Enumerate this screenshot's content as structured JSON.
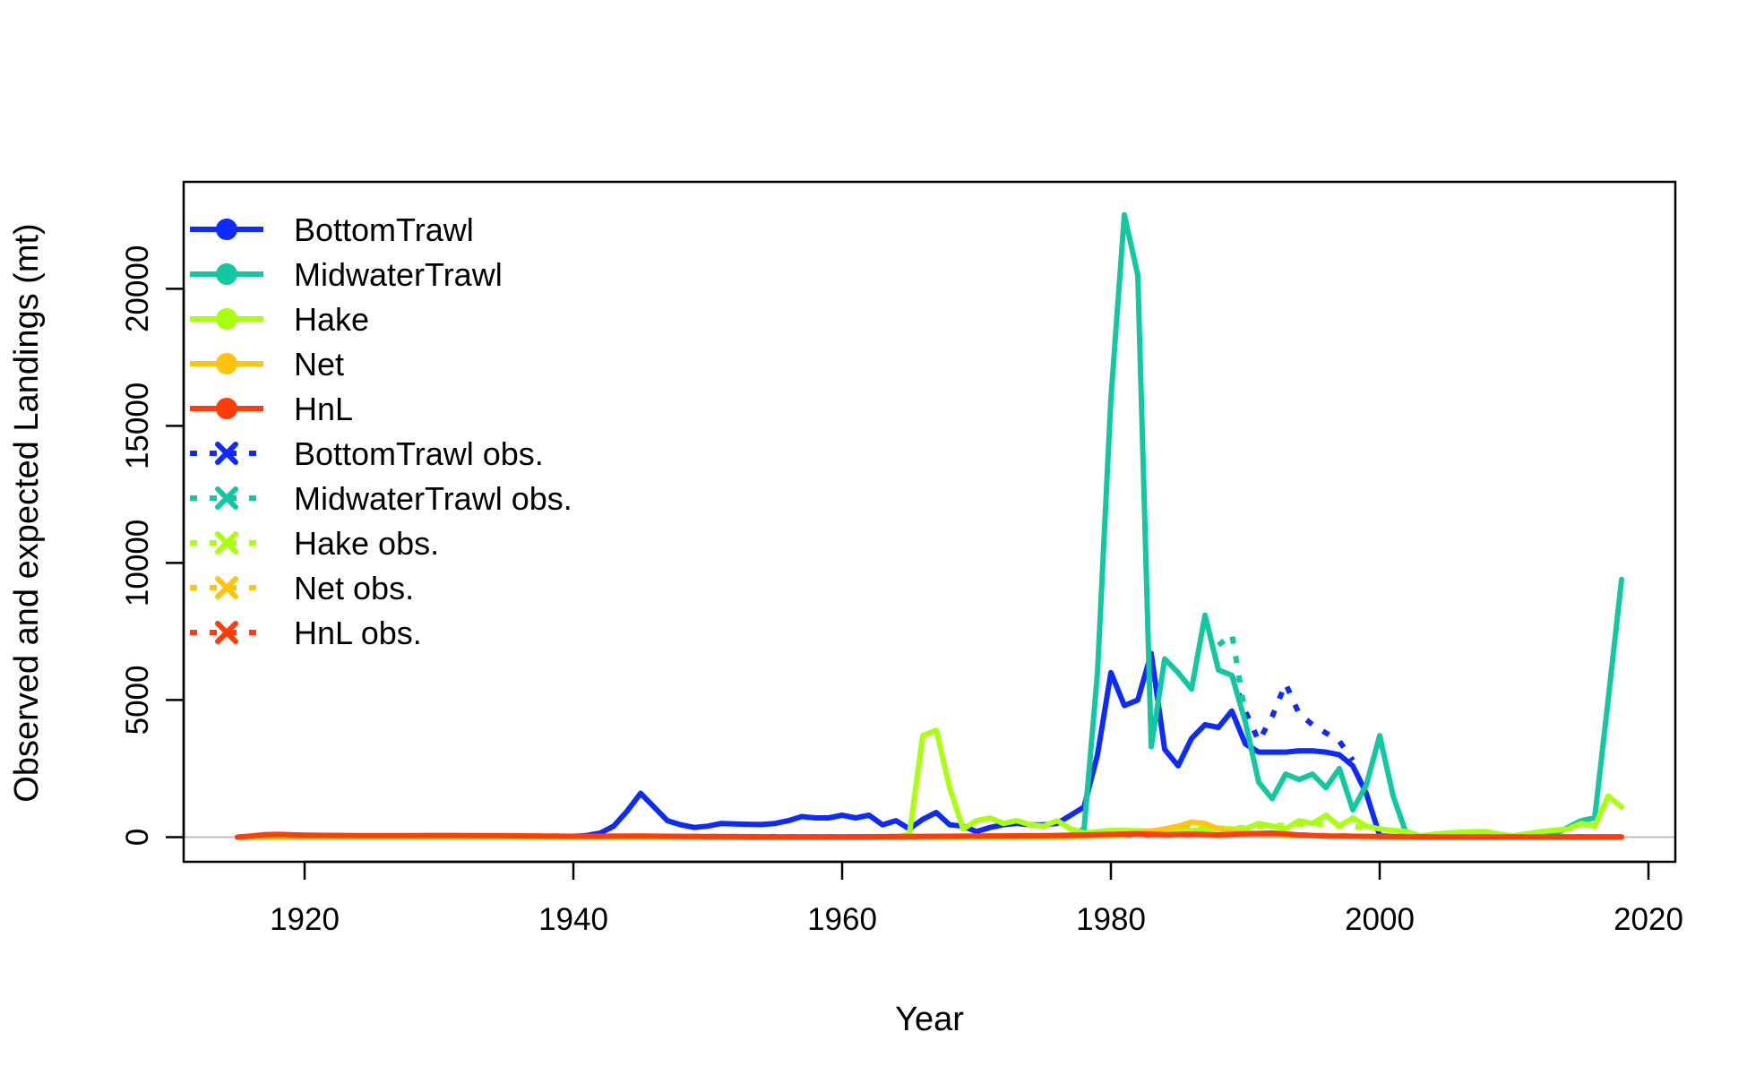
{
  "chart_data": {
    "type": "line",
    "title": "",
    "xlabel": "Year",
    "ylabel": "Observed and expected Landings (mt)",
    "xlim": [
      1911,
      2022
    ],
    "ylim": [
      -900,
      23900
    ],
    "x_ticks": [
      1920,
      1940,
      1960,
      1980,
      2000,
      2020
    ],
    "y_ticks": [
      0,
      5000,
      10000,
      15000,
      20000
    ],
    "grid": false,
    "legend_position": "top-left",
    "zero_line_color": "#BEBEBE",
    "series": [
      {
        "name": "BottomTrawl",
        "color": "#0D2BFF",
        "style": "solid",
        "points": [
          [
            1915,
            0
          ],
          [
            1920,
            0
          ],
          [
            1930,
            0
          ],
          [
            1940,
            20
          ],
          [
            1941,
            60
          ],
          [
            1942,
            150
          ],
          [
            1943,
            400
          ],
          [
            1944,
            950
          ],
          [
            1945,
            1600
          ],
          [
            1946,
            1100
          ],
          [
            1947,
            600
          ],
          [
            1948,
            450
          ],
          [
            1949,
            350
          ],
          [
            1950,
            400
          ],
          [
            1951,
            500
          ],
          [
            1952,
            480
          ],
          [
            1953,
            470
          ],
          [
            1954,
            460
          ],
          [
            1955,
            500
          ],
          [
            1956,
            600
          ],
          [
            1957,
            750
          ],
          [
            1958,
            700
          ],
          [
            1959,
            700
          ],
          [
            1960,
            800
          ],
          [
            1961,
            700
          ],
          [
            1962,
            800
          ],
          [
            1963,
            450
          ],
          [
            1964,
            600
          ],
          [
            1965,
            300
          ],
          [
            1966,
            650
          ],
          [
            1967,
            900
          ],
          [
            1968,
            450
          ],
          [
            1969,
            400
          ],
          [
            1970,
            200
          ],
          [
            1971,
            350
          ],
          [
            1972,
            450
          ],
          [
            1973,
            500
          ],
          [
            1974,
            450
          ],
          [
            1975,
            450
          ],
          [
            1976,
            500
          ],
          [
            1977,
            800
          ],
          [
            1978,
            1100
          ],
          [
            1979,
            3000
          ],
          [
            1980,
            6000
          ],
          [
            1981,
            4800
          ],
          [
            1982,
            5000
          ],
          [
            1983,
            6700
          ],
          [
            1984,
            3200
          ],
          [
            1985,
            2600
          ],
          [
            1986,
            3600
          ],
          [
            1987,
            4100
          ],
          [
            1988,
            4000
          ],
          [
            1989,
            4600
          ],
          [
            1990,
            3400
          ],
          [
            1991,
            3100
          ],
          [
            1992,
            3100
          ],
          [
            1993,
            3100
          ],
          [
            1994,
            3150
          ],
          [
            1995,
            3150
          ],
          [
            1996,
            3100
          ],
          [
            1997,
            3000
          ],
          [
            1998,
            2600
          ],
          [
            1999,
            1600
          ],
          [
            2000,
            50
          ],
          [
            2001,
            20
          ],
          [
            2005,
            0
          ],
          [
            2010,
            0
          ],
          [
            2018,
            0
          ]
        ]
      },
      {
        "name": "MidwaterTrawl",
        "color": "#12C8A0",
        "style": "solid",
        "points": [
          [
            1915,
            0
          ],
          [
            1975,
            0
          ],
          [
            1977,
            50
          ],
          [
            1978,
            300
          ],
          [
            1979,
            6000
          ],
          [
            1980,
            16000
          ],
          [
            1981,
            22700
          ],
          [
            1982,
            20500
          ],
          [
            1983,
            3300
          ],
          [
            1984,
            6500
          ],
          [
            1985,
            6000
          ],
          [
            1986,
            5400
          ],
          [
            1987,
            8100
          ],
          [
            1988,
            6100
          ],
          [
            1989,
            5900
          ],
          [
            1990,
            4200
          ],
          [
            1991,
            2000
          ],
          [
            1992,
            1400
          ],
          [
            1993,
            2300
          ],
          [
            1994,
            2100
          ],
          [
            1995,
            2300
          ],
          [
            1996,
            1800
          ],
          [
            1997,
            2500
          ],
          [
            1998,
            1000
          ],
          [
            1999,
            1900
          ],
          [
            2000,
            3700
          ],
          [
            2001,
            1500
          ],
          [
            2002,
            100
          ],
          [
            2003,
            50
          ],
          [
            2005,
            0
          ],
          [
            2010,
            0
          ],
          [
            2013,
            100
          ],
          [
            2014,
            350
          ],
          [
            2015,
            600
          ],
          [
            2016,
            700
          ],
          [
            2017,
            5000
          ],
          [
            2018,
            9400
          ]
        ]
      },
      {
        "name": "Hake",
        "color": "#A8FF0E",
        "style": "solid",
        "points": [
          [
            1915,
            0
          ],
          [
            1964,
            0
          ],
          [
            1965,
            100
          ],
          [
            1966,
            3700
          ],
          [
            1967,
            3900
          ],
          [
            1968,
            1800
          ],
          [
            1969,
            300
          ],
          [
            1970,
            600
          ],
          [
            1971,
            700
          ],
          [
            1972,
            500
          ],
          [
            1973,
            600
          ],
          [
            1974,
            450
          ],
          [
            1975,
            400
          ],
          [
            1976,
            600
          ],
          [
            1977,
            300
          ],
          [
            1978,
            150
          ],
          [
            1980,
            250
          ],
          [
            1985,
            200
          ],
          [
            1988,
            300
          ],
          [
            1990,
            300
          ],
          [
            1991,
            500
          ],
          [
            1992,
            400
          ],
          [
            1993,
            300
          ],
          [
            1994,
            600
          ],
          [
            1995,
            500
          ],
          [
            1996,
            800
          ],
          [
            1997,
            400
          ],
          [
            1998,
            700
          ],
          [
            1999,
            400
          ],
          [
            2000,
            300
          ],
          [
            2001,
            250
          ],
          [
            2002,
            200
          ],
          [
            2003,
            50
          ],
          [
            2005,
            150
          ],
          [
            2007,
            200
          ],
          [
            2008,
            200
          ],
          [
            2009,
            100
          ],
          [
            2010,
            50
          ],
          [
            2012,
            200
          ],
          [
            2014,
            300
          ],
          [
            2015,
            500
          ],
          [
            2016,
            400
          ],
          [
            2017,
            1500
          ],
          [
            2018,
            1100
          ]
        ]
      },
      {
        "name": "Net",
        "color": "#FFC410",
        "style": "solid",
        "points": [
          [
            1915,
            0
          ],
          [
            1975,
            0
          ],
          [
            1980,
            50
          ],
          [
            1982,
            150
          ],
          [
            1984,
            300
          ],
          [
            1985,
            400
          ],
          [
            1986,
            550
          ],
          [
            1987,
            500
          ],
          [
            1988,
            300
          ],
          [
            1989,
            200
          ],
          [
            1990,
            150
          ],
          [
            1992,
            100
          ],
          [
            1995,
            50
          ],
          [
            2000,
            20
          ],
          [
            2005,
            0
          ],
          [
            2018,
            0
          ]
        ]
      },
      {
        "name": "HnL",
        "color": "#FF3D0A",
        "style": "solid",
        "points": [
          [
            1915,
            0
          ],
          [
            1916,
            40
          ],
          [
            1917,
            90
          ],
          [
            1918,
            100
          ],
          [
            1920,
            70
          ],
          [
            1925,
            50
          ],
          [
            1930,
            60
          ],
          [
            1935,
            50
          ],
          [
            1940,
            30
          ],
          [
            1945,
            40
          ],
          [
            1950,
            20
          ],
          [
            1955,
            10
          ],
          [
            1960,
            10
          ],
          [
            1965,
            20
          ],
          [
            1970,
            40
          ],
          [
            1975,
            50
          ],
          [
            1978,
            80
          ],
          [
            1980,
            100
          ],
          [
            1982,
            120
          ],
          [
            1984,
            90
          ],
          [
            1986,
            110
          ],
          [
            1988,
            80
          ],
          [
            1990,
            120
          ],
          [
            1992,
            150
          ],
          [
            1994,
            80
          ],
          [
            1996,
            40
          ],
          [
            2000,
            20
          ],
          [
            2005,
            10
          ],
          [
            2010,
            10
          ],
          [
            2018,
            10
          ]
        ]
      },
      {
        "name": "BottomTrawl obs.",
        "color": "#0D2BFF",
        "style": "dotted",
        "points": [
          [
            1989,
            5900
          ],
          [
            1990,
            4600
          ],
          [
            1991,
            3500
          ],
          [
            1992,
            4400
          ],
          [
            1993,
            5600
          ],
          [
            1994,
            4500
          ],
          [
            1995,
            4100
          ],
          [
            1996,
            3800
          ],
          [
            1997,
            3500
          ],
          [
            1998,
            2800
          ]
        ]
      },
      {
        "name": "MidwaterTrawl obs.",
        "color": "#12C8A0",
        "style": "dotted",
        "points": [
          [
            1988,
            7000
          ],
          [
            1989,
            7400
          ],
          [
            1990,
            4500
          ]
        ]
      },
      {
        "name": "Hake obs.",
        "color": "#A8FF0E",
        "style": "dotted",
        "points": [
          [
            1985,
            300
          ],
          [
            1990,
            350
          ],
          [
            1995,
            500
          ],
          [
            2000,
            300
          ]
        ]
      },
      {
        "name": "Net obs.",
        "color": "#FFC410",
        "style": "dotted",
        "points": [
          [
            1915,
            0
          ],
          [
            1940,
            10
          ],
          [
            1960,
            10
          ],
          [
            1980,
            40
          ],
          [
            1985,
            350
          ],
          [
            1988,
            250
          ],
          [
            1990,
            120
          ],
          [
            2000,
            10
          ],
          [
            2018,
            0
          ]
        ]
      },
      {
        "name": "HnL obs.",
        "color": "#FF3D0A",
        "style": "dotted",
        "points": [
          [
            1915,
            0
          ],
          [
            1918,
            80
          ],
          [
            1925,
            40
          ],
          [
            1935,
            40
          ],
          [
            1945,
            30
          ],
          [
            1960,
            10
          ],
          [
            1975,
            40
          ],
          [
            1980,
            90
          ],
          [
            1985,
            90
          ],
          [
            1990,
            130
          ],
          [
            1995,
            60
          ],
          [
            2000,
            20
          ],
          [
            2018,
            10
          ]
        ]
      }
    ]
  }
}
